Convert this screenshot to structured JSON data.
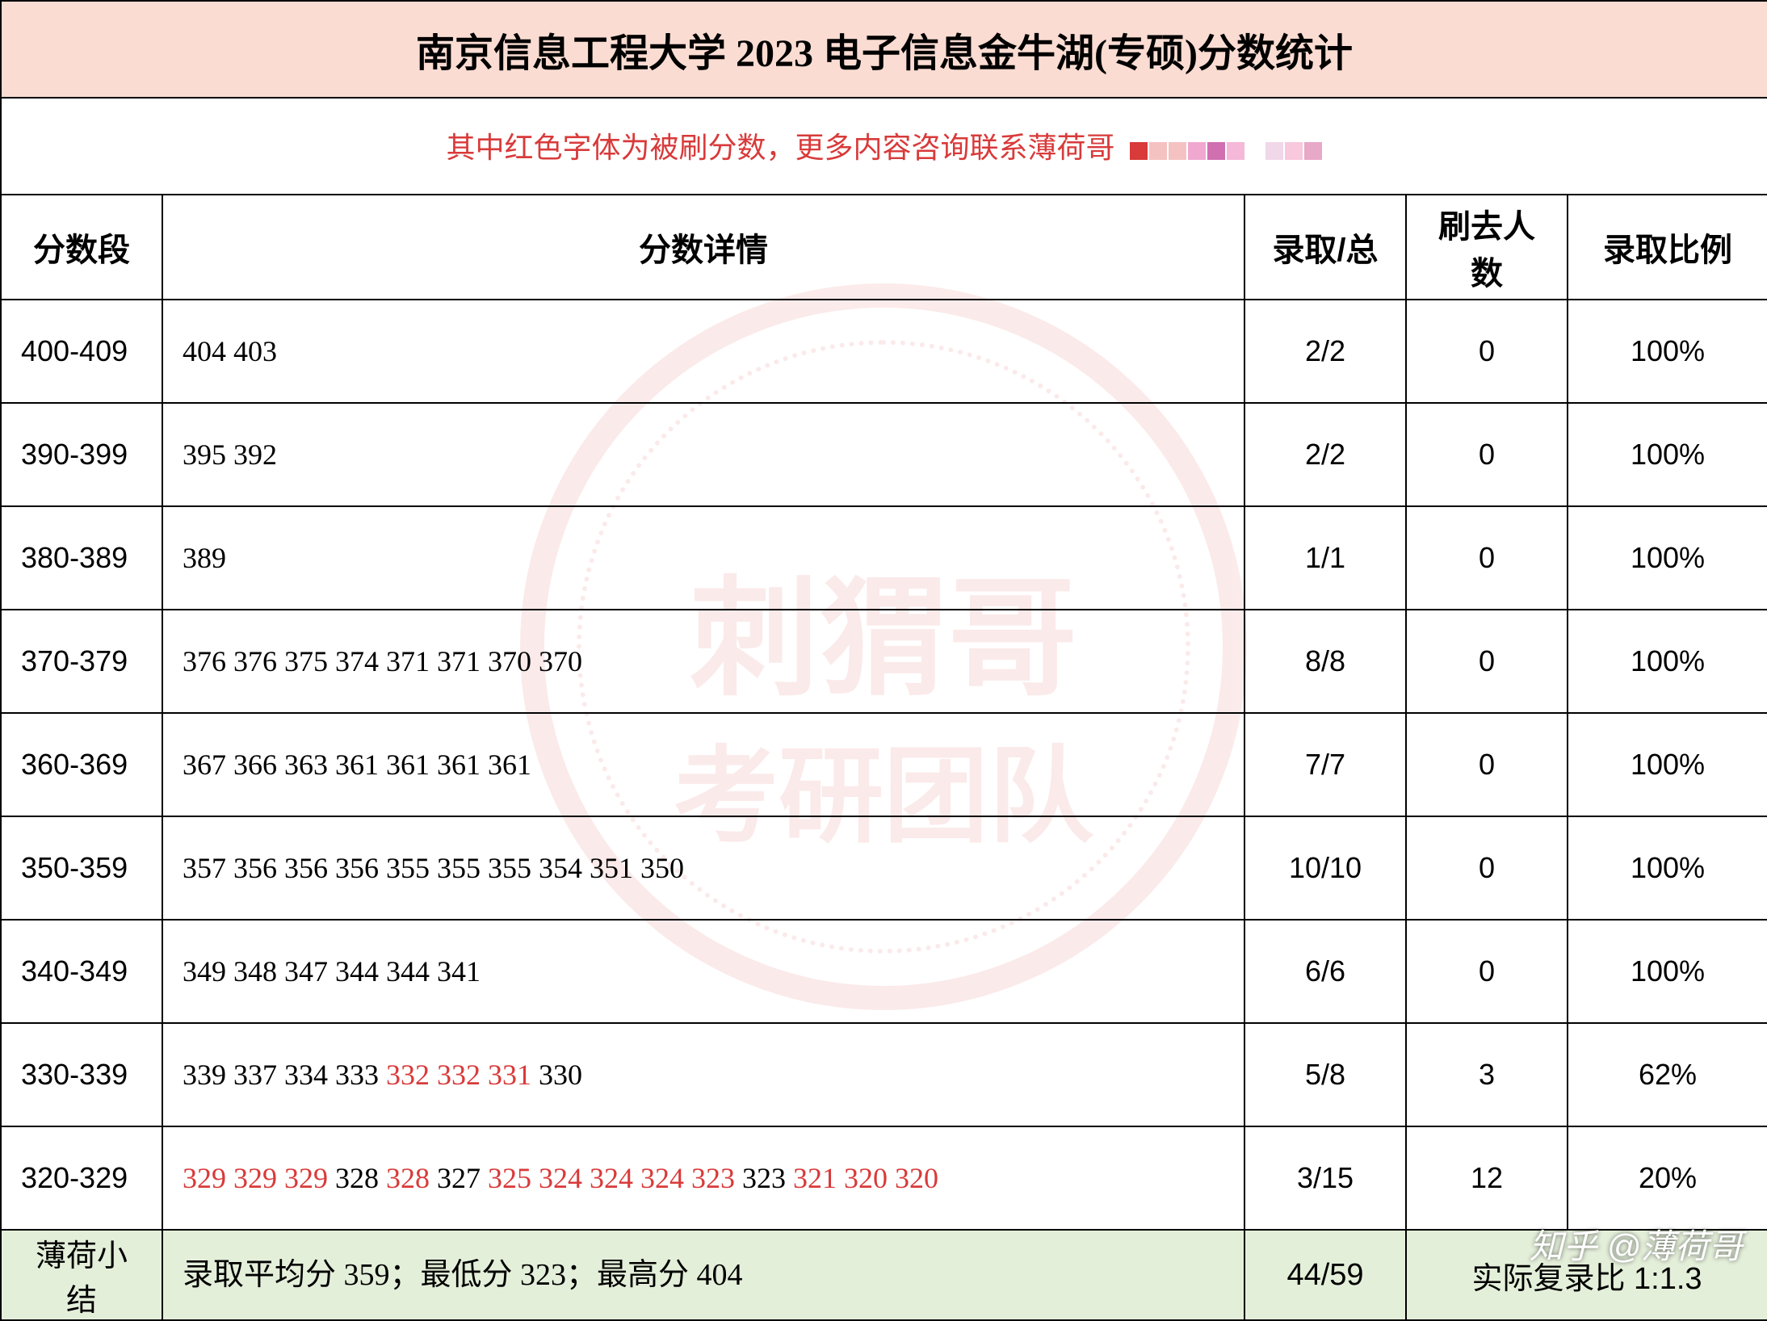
{
  "title": "南京信息工程大学 2023 电子信息金牛湖(专硕)分数统计",
  "note": "其中红色字体为被刷分数，更多内容咨询联系薄荷哥",
  "pixel_colors": [
    "#d93a3a",
    "#f5c2c2",
    "#f5c2c2",
    "#f0a8d0",
    "#d070b0",
    "#f5b8d8",
    "#ffffff",
    "#f0d8e8",
    "#f8c8dc",
    "#e8a8c8"
  ],
  "watermark": {
    "line1": "刺猬哥",
    "line2": "考研团队",
    "circle_color": "#e97a7a"
  },
  "corner_watermark": "知乎 @薄荷哥",
  "columns": {
    "range": "分数段",
    "detail": "分数详情",
    "admit": "录取/总",
    "cut": "刷去人数",
    "ratio": "录取比例"
  },
  "rows": [
    {
      "range": "400-409",
      "scores": [
        {
          "v": "404",
          "r": false
        },
        {
          "v": "403",
          "r": false
        }
      ],
      "admit": "2/2",
      "cut": "0",
      "ratio": "100%"
    },
    {
      "range": "390-399",
      "scores": [
        {
          "v": "395",
          "r": false
        },
        {
          "v": "392",
          "r": false
        }
      ],
      "admit": "2/2",
      "cut": "0",
      "ratio": "100%"
    },
    {
      "range": "380-389",
      "scores": [
        {
          "v": "389",
          "r": false
        }
      ],
      "admit": "1/1",
      "cut": "0",
      "ratio": "100%"
    },
    {
      "range": "370-379",
      "scores": [
        {
          "v": "376",
          "r": false
        },
        {
          "v": "376",
          "r": false
        },
        {
          "v": "375",
          "r": false
        },
        {
          "v": "374",
          "r": false
        },
        {
          "v": "371",
          "r": false
        },
        {
          "v": "371",
          "r": false
        },
        {
          "v": "370",
          "r": false
        },
        {
          "v": "370",
          "r": false
        }
      ],
      "admit": "8/8",
      "cut": "0",
      "ratio": "100%"
    },
    {
      "range": "360-369",
      "scores": [
        {
          "v": "367",
          "r": false
        },
        {
          "v": "366",
          "r": false
        },
        {
          "v": "363",
          "r": false
        },
        {
          "v": "361",
          "r": false
        },
        {
          "v": "361",
          "r": false
        },
        {
          "v": "361",
          "r": false
        },
        {
          "v": "361",
          "r": false
        }
      ],
      "admit": "7/7",
      "cut": "0",
      "ratio": "100%"
    },
    {
      "range": "350-359",
      "scores": [
        {
          "v": "357",
          "r": false
        },
        {
          "v": "356",
          "r": false
        },
        {
          "v": "356",
          "r": false
        },
        {
          "v": "356",
          "r": false
        },
        {
          "v": "355",
          "r": false
        },
        {
          "v": "355",
          "r": false
        },
        {
          "v": "355",
          "r": false
        },
        {
          "v": "354",
          "r": false
        },
        {
          "v": "351",
          "r": false
        },
        {
          "v": "350",
          "r": false
        }
      ],
      "admit": "10/10",
      "cut": "0",
      "ratio": "100%"
    },
    {
      "range": "340-349",
      "scores": [
        {
          "v": "349",
          "r": false
        },
        {
          "v": "348",
          "r": false
        },
        {
          "v": "347",
          "r": false
        },
        {
          "v": "344",
          "r": false
        },
        {
          "v": "344",
          "r": false
        },
        {
          "v": "341",
          "r": false
        }
      ],
      "admit": "6/6",
      "cut": "0",
      "ratio": "100%"
    },
    {
      "range": "330-339",
      "scores": [
        {
          "v": "339",
          "r": false
        },
        {
          "v": "337",
          "r": false
        },
        {
          "v": "334",
          "r": false
        },
        {
          "v": "333",
          "r": false
        },
        {
          "v": "332",
          "r": true
        },
        {
          "v": "332",
          "r": true
        },
        {
          "v": "331",
          "r": true
        },
        {
          "v": "330",
          "r": false
        }
      ],
      "admit": "5/8",
      "cut": "3",
      "ratio": "62%"
    },
    {
      "range": "320-329",
      "scores": [
        {
          "v": "329",
          "r": true
        },
        {
          "v": "329",
          "r": true
        },
        {
          "v": "329",
          "r": true
        },
        {
          "v": "328",
          "r": false
        },
        {
          "v": "328",
          "r": true
        },
        {
          "v": "327",
          "r": false
        },
        {
          "v": "325",
          "r": true
        },
        {
          "v": "324",
          "r": true
        },
        {
          "v": "324",
          "r": true
        },
        {
          "v": "324",
          "r": true
        },
        {
          "v": "323",
          "r": true
        },
        {
          "v": "323",
          "r": false
        },
        {
          "v": "321",
          "r": true
        },
        {
          "v": "320",
          "r": true
        },
        {
          "v": "320",
          "r": true
        }
      ],
      "admit": "3/15",
      "cut": "12",
      "ratio": "20%"
    }
  ],
  "summary": {
    "label": "薄荷小结",
    "detail": "录取平均分 359；最低分 323；最高分 404",
    "admit": "44/59",
    "ratio_text": "实际复录比 1:1.3"
  },
  "colors": {
    "title_bg": "#fadcd2",
    "summary_bg": "#e4efda",
    "rejected_text": "#d93a3a",
    "border": "#000000"
  }
}
